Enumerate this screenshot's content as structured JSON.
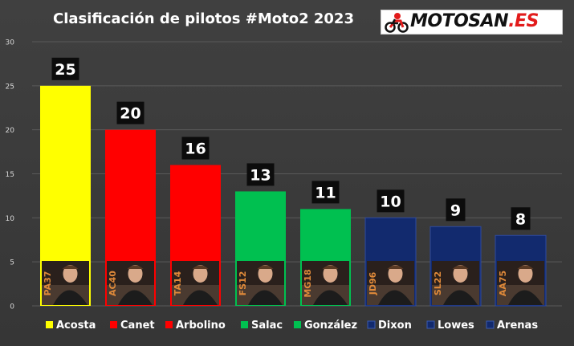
{
  "title": "Clasificación de pilotos #Moto2 2023",
  "logo": {
    "text_main": "MOTOSAN",
    "text_accent": ".ES",
    "icon": "motorbike-rider-icon"
  },
  "colors": {
    "yellow": "#ffff00",
    "red": "#ff0000",
    "green": "#00c050",
    "navy": "#122a6e"
  },
  "chart_data": {
    "type": "bar",
    "title": "Clasificación de pilotos #Moto2 2023",
    "xlabel": "",
    "ylabel": "",
    "ylim": [
      0,
      30
    ],
    "yticks": [
      0,
      5,
      10,
      15,
      20,
      25,
      30
    ],
    "grid": true,
    "legend_position": "bottom",
    "categories": [
      "Acosta",
      "Canet",
      "Arbolino",
      "Salac",
      "González",
      "Dixon",
      "Lowes",
      "Arenas"
    ],
    "values": [
      25,
      20,
      16,
      13,
      11,
      10,
      9,
      8
    ],
    "value_labels": [
      "25",
      "20",
      "16",
      "13",
      "11",
      "10",
      "9",
      "8"
    ],
    "rider_numbers": [
      "PA37",
      "AC40",
      "TA14",
      "FS12",
      "MG18",
      "JD96",
      "SL22",
      "AA75"
    ],
    "bar_colors": [
      "#ffff00",
      "#ff0000",
      "#ff0000",
      "#00c050",
      "#00c050",
      "#122a6e",
      "#122a6e",
      "#122a6e"
    ]
  }
}
